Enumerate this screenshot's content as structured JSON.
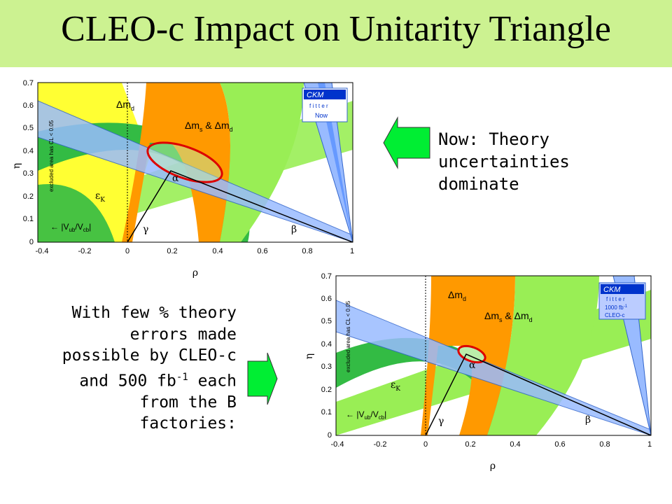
{
  "title": "CLEO-c Impact on Unitarity Triangle",
  "notes": {
    "now_line1": "Now:  Theory",
    "now_line2": "uncertainties",
    "now_line3": "dominate",
    "future_l1": "With few % theory",
    "future_l2": "errors made",
    "future_l3": "possible by CLEO-c",
    "future_l4a": "and 500 fb",
    "future_l4sup": "-1",
    "future_l4b": " each",
    "future_l5": "from the B",
    "future_l6": "factories:"
  },
  "plots": {
    "x_ticks": [
      "-0.4",
      "-0.2",
      "0",
      "0.2",
      "0.4",
      "0.6",
      "0.8",
      "1"
    ],
    "y_ticks": [
      "0",
      "0.1",
      "0.2",
      "0.3",
      "0.4",
      "0.5",
      "0.6",
      "0.7"
    ],
    "x_label": "ρ",
    "y_label": "η",
    "excluded_label": "excluded area has CL < 0.05",
    "dmd": "Δm",
    "dmd_sub": "d",
    "dms": "Δm",
    "dms_sub": "s",
    "dms_and": " & Δm",
    "dms_sub2": "d",
    "epsk": "ε",
    "epsk_sub": "K",
    "vub": "|V",
    "vub_sub1": "ub",
    "vub_mid": "/V",
    "vub_sub2": "cb",
    "vub_end": "|",
    "alpha": "α",
    "beta": "β",
    "gamma": "γ",
    "ckm": "CKM",
    "fitter": "f i t t e r",
    "now_tag": "Now",
    "future_tag1": "1000 fb",
    "future_tag_sup": "-1",
    "future_tag2": "CLEO-c"
  },
  "colors": {
    "title_bg": "#ccf291",
    "light_green": "#99ee55",
    "dark_green": "#33bb44",
    "orange": "#ff9900",
    "yellow": "#ffff33",
    "blue_band": "#99bbff",
    "red_contour": "#dd0000",
    "arrow_green": "#00ee33"
  }
}
